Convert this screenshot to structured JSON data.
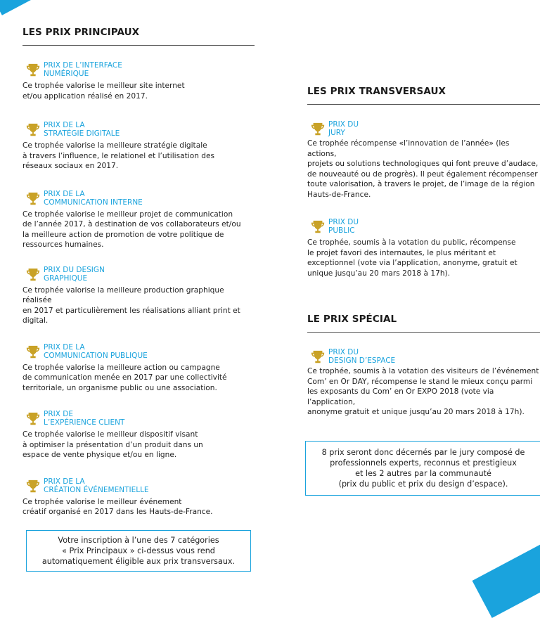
{
  "colors": {
    "accent": "#1aa3dd",
    "text": "#222222",
    "gold": "#c9a227"
  },
  "icons": {
    "prize_icon": "trophy-icon"
  },
  "left": {
    "title": "LES PRIX PRINCIPAUX",
    "prizes": [
      {
        "title": "PRIX DE L’INTERFACE\nNUMÉRIQUE",
        "desc": "Ce trophée valorise le meilleur site internet\net/ou application réalisé en 2017."
      },
      {
        "title": "PRIX DE LA\nSTRATÉGIE DIGITALE",
        "desc": "Ce trophée valorise la meilleure stratégie digitale\nà travers l’influence, le relationel et l’utilisation des\nréseaux sociaux en 2017."
      },
      {
        "title": "PRIX DE LA\nCOMMUNICATION INTERNE",
        "desc": "Ce trophée valorise le meilleur projet de communication\nde l’année 2017, à destination de vos collaborateurs et/ou\nla meilleure action de promotion de votre politique de\nressources humaines."
      },
      {
        "title": "PRIX DU DESIGN\nGRAPHIQUE",
        "desc": "Ce trophée valorise la meilleure production graphique réalisée\nen 2017 et particulièrement les réalisations alliant print et digital."
      },
      {
        "title": "PRIX DE LA\nCOMMUNICATION PUBLIQUE",
        "desc": "Ce trophée valorise la meilleure action ou campagne\nde communication menée en 2017 par une collectivité\nterritoriale, un organisme public ou une association."
      },
      {
        "title": "PRIX DE\nL’EXPÉRIENCE CLIENT",
        "desc": "Ce trophée valorise le meilleur dispositif visant\nà optimiser la présentation d’un produit dans un\nespace de vente physique et/ou en ligne."
      },
      {
        "title": "PRIX DE LA\nCRÉATION ÉVÉNEMENTIELLE",
        "desc": "Ce trophée valorise le meilleur événement\ncréatif organisé en 2017 dans les Hauts-de-France."
      }
    ],
    "note": "Votre inscription à l’une des 7 catégories\n« Prix Principaux » ci-dessus vous rend\nautomatiquement éligible aux prix transversaux."
  },
  "right": {
    "transversal_title": "LES PRIX TRANSVERSAUX",
    "transversal": [
      {
        "title": "PRIX DU\nJURY",
        "desc": "Ce trophée récompense «l’innovation de l’année» (les actions,\n projets ou solutions technologiques qui font preuve d’audace,\nde nouveauté ou de progrès). Il peut également récompenser\ntoute valorisation, à travers le projet, de l’image de la région\nHauts-de-France."
      },
      {
        "title": "PRIX DU\nPUBLIC",
        "desc": "Ce trophée, soumis à la votation du public, récompense\nle projet favori des internautes, le plus méritant et\nexceptionnel (vote via l’application, anonyme, gratuit et\nunique jusqu’au 20 mars 2018 à 17h)."
      }
    ],
    "special_title": "LE PRIX SPÉCIAL",
    "special": [
      {
        "title": "PRIX DU\nDESIGN D’ESPACE",
        "desc": "Ce trophée, soumis à la votation des visiteurs de l’événement\nCom’ en Or DAY, récompense le stand le mieux conçu parmi\nles exposants du Com’ en Or EXPO 2018 (vote via l’application,\nanonyme gratuit et unique jusqu’au 20 mars 2018 à 17h)."
      }
    ],
    "note": "8 prix seront donc décernés par le jury composé de\nprofessionnels  experts, reconnus et prestigieux\net les 2 autres  par la communauté\n(prix du public et prix du design d’espace)."
  }
}
